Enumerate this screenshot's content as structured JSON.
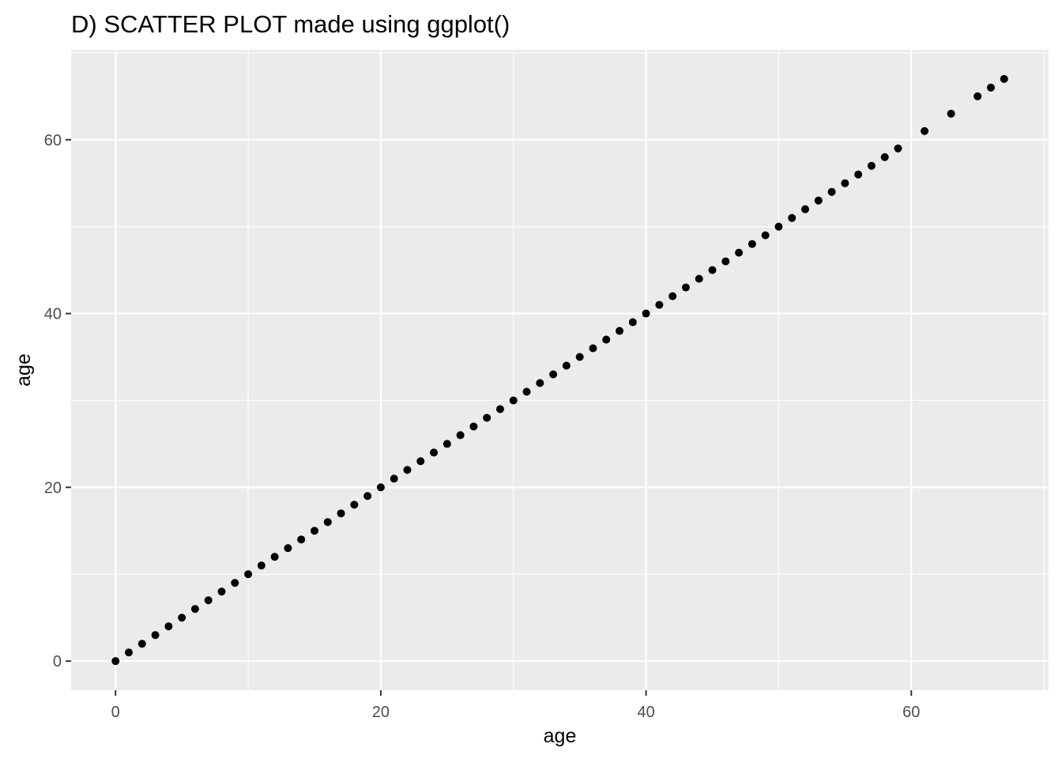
{
  "chart_data": {
    "type": "scatter",
    "title": "D) SCATTER PLOT made using ggplot()",
    "xlabel": "age",
    "ylabel": "age",
    "xlim": [
      -3.35,
      70.35
    ],
    "ylim": [
      -3.35,
      70.35
    ],
    "x_ticks": [
      0,
      20,
      40,
      60
    ],
    "y_ticks": [
      0,
      20,
      40,
      60
    ],
    "x_tick_labels": [
      "0",
      "20",
      "40",
      "60"
    ],
    "y_tick_labels": [
      "0",
      "20",
      "40",
      "60"
    ],
    "grid": true,
    "legend": "none",
    "colors": {
      "panel": "#ebebeb",
      "grid": "#ffffff",
      "point": "#000000"
    },
    "x": [
      0,
      1,
      2,
      3,
      4,
      5,
      6,
      7,
      8,
      9,
      10,
      11,
      12,
      13,
      14,
      15,
      16,
      17,
      18,
      19,
      20,
      21,
      22,
      23,
      24,
      25,
      26,
      27,
      28,
      29,
      30,
      31,
      32,
      33,
      34,
      35,
      36,
      37,
      38,
      39,
      40,
      41,
      42,
      43,
      44,
      45,
      46,
      47,
      48,
      49,
      50,
      51,
      52,
      53,
      54,
      55,
      56,
      57,
      58,
      59,
      61,
      63,
      65,
      66,
      67
    ],
    "y": [
      0,
      1,
      2,
      3,
      4,
      5,
      6,
      7,
      8,
      9,
      10,
      11,
      12,
      13,
      14,
      15,
      16,
      17,
      18,
      19,
      20,
      21,
      22,
      23,
      24,
      25,
      26,
      27,
      28,
      29,
      30,
      31,
      32,
      33,
      34,
      35,
      36,
      37,
      38,
      39,
      40,
      41,
      42,
      43,
      44,
      45,
      46,
      47,
      48,
      49,
      50,
      51,
      52,
      53,
      54,
      55,
      56,
      57,
      58,
      59,
      61,
      63,
      65,
      66,
      67
    ]
  }
}
